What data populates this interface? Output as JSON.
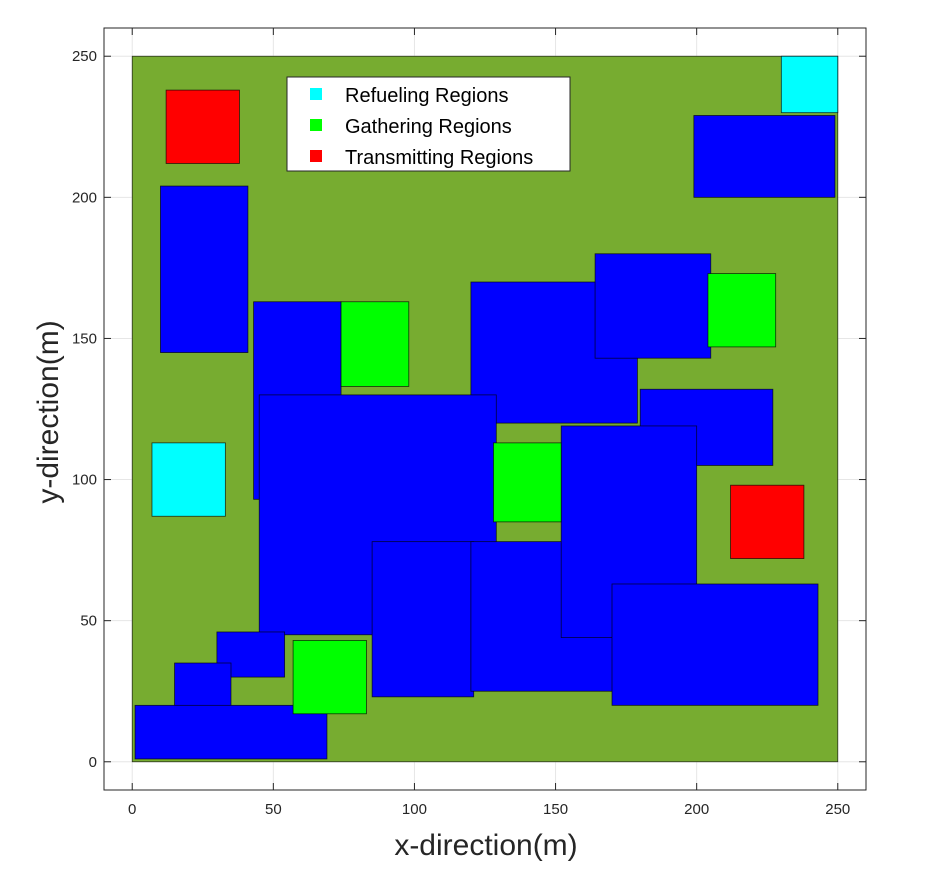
{
  "chart_data": {
    "type": "map",
    "xlabel": "x-direction(m)",
    "ylabel": "y-direction(m)",
    "xlim": [
      -10,
      260
    ],
    "ylim": [
      -10,
      260
    ],
    "xticks": [
      0,
      50,
      100,
      150,
      200,
      250
    ],
    "yticks": [
      0,
      50,
      100,
      150,
      200,
      250
    ],
    "grid": true,
    "area": {
      "x0": 0,
      "y0": 0,
      "x1": 250,
      "y1": 250,
      "color": "#77AC30"
    },
    "obstacle_color": "#0000FF",
    "legend": {
      "placement": "top-center",
      "entries": [
        {
          "label": "Refueling Regions",
          "color": "#00FFFF"
        },
        {
          "label": "Gathering Regions",
          "color": "#00FF00"
        },
        {
          "label": "Transmitting Regions",
          "color": "#FF0000"
        }
      ]
    },
    "obstacles": [
      {
        "x0": 199,
        "y0": 200,
        "x1": 249,
        "y1": 229
      },
      {
        "x0": 10,
        "y0": 145,
        "x1": 41,
        "y1": 204
      },
      {
        "x0": 43,
        "y0": 93,
        "x1": 74,
        "y1": 163
      },
      {
        "x0": 120,
        "y0": 120,
        "x1": 179,
        "y1": 170
      },
      {
        "x0": 164,
        "y0": 143,
        "x1": 205,
        "y1": 180
      },
      {
        "x0": 180,
        "y0": 105,
        "x1": 227,
        "y1": 132
      },
      {
        "x0": 45,
        "y0": 45,
        "x1": 129,
        "y1": 130
      },
      {
        "x0": 85,
        "y0": 23,
        "x1": 121,
        "y1": 78
      },
      {
        "x0": 120,
        "y0": 25,
        "x1": 176,
        "y1": 78
      },
      {
        "x0": 152,
        "y0": 44,
        "x1": 200,
        "y1": 119
      },
      {
        "x0": 170,
        "y0": 20,
        "x1": 243,
        "y1": 63
      },
      {
        "x0": 30,
        "y0": 30,
        "x1": 54,
        "y1": 46
      },
      {
        "x0": 15,
        "y0": 15,
        "x1": 35,
        "y1": 35
      },
      {
        "x0": 1,
        "y0": 1,
        "x1": 69,
        "y1": 20
      }
    ],
    "refueling_regions": [
      {
        "x0": 230,
        "y0": 230,
        "x1": 250,
        "y1": 250
      },
      {
        "x0": 7,
        "y0": 87,
        "x1": 33,
        "y1": 113
      }
    ],
    "gathering_regions": [
      {
        "x0": 74,
        "y0": 133,
        "x1": 98,
        "y1": 163
      },
      {
        "x0": 204,
        "y0": 147,
        "x1": 228,
        "y1": 173
      },
      {
        "x0": 128,
        "y0": 85,
        "x1": 152,
        "y1": 113
      },
      {
        "x0": 57,
        "y0": 17,
        "x1": 83,
        "y1": 43
      }
    ],
    "transmitting_regions": [
      {
        "x0": 12,
        "y0": 212,
        "x1": 38,
        "y1": 238
      },
      {
        "x0": 212,
        "y0": 72,
        "x1": 238,
        "y1": 98
      }
    ]
  }
}
